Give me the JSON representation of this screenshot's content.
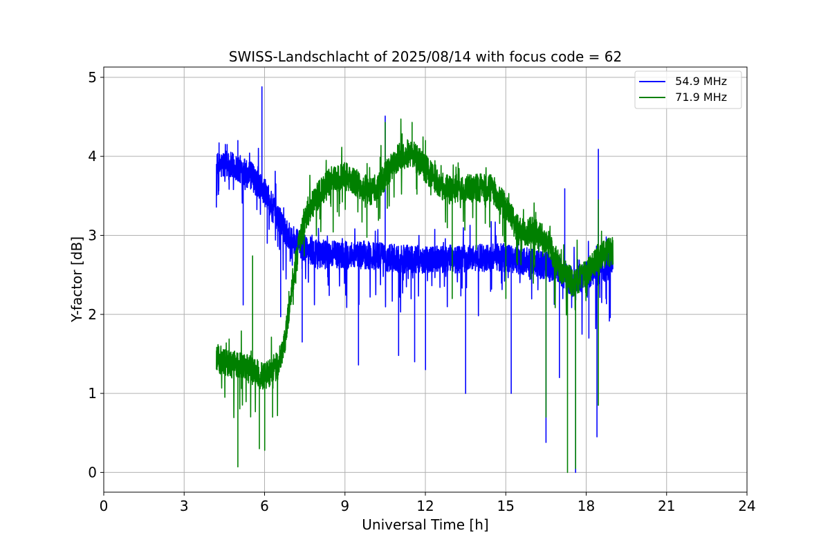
{
  "chart_data": {
    "type": "line",
    "title": "SWISS-Landschlacht of 2025/08/14 with focus code = 62",
    "xlabel": "Universal Time [h]",
    "ylabel": "Y-factor [dB]",
    "xlim": [
      0,
      24
    ],
    "ylim": [
      -0.25,
      5.13
    ],
    "xticks": [
      0,
      3,
      6,
      9,
      12,
      15,
      18,
      21,
      24
    ],
    "xtick_labels": [
      "0",
      "3",
      "6",
      "9",
      "12",
      "15",
      "18",
      "21",
      "24"
    ],
    "yticks": [
      0,
      1,
      2,
      3,
      4,
      5
    ],
    "ytick_labels": [
      "0",
      "1",
      "2",
      "3",
      "4",
      "5"
    ],
    "grid": true,
    "legend_position": "top-right",
    "series": [
      {
        "name": "  54.9 MHz",
        "color": "#0000ff",
        "x_range": [
          4.2,
          19.0
        ],
        "base": [
          [
            4.2,
            3.85
          ],
          [
            4.5,
            3.9
          ],
          [
            5.0,
            3.85
          ],
          [
            5.5,
            3.75
          ],
          [
            6.0,
            3.55
          ],
          [
            6.3,
            3.35
          ],
          [
            6.7,
            3.1
          ],
          [
            7.0,
            2.95
          ],
          [
            7.5,
            2.85
          ],
          [
            8.0,
            2.75
          ],
          [
            9.0,
            2.75
          ],
          [
            10.0,
            2.75
          ],
          [
            11.0,
            2.7
          ],
          [
            12.0,
            2.7
          ],
          [
            13.0,
            2.7
          ],
          [
            14.0,
            2.72
          ],
          [
            15.0,
            2.72
          ],
          [
            16.0,
            2.65
          ],
          [
            17.0,
            2.55
          ],
          [
            17.5,
            2.4
          ],
          [
            18.0,
            2.5
          ],
          [
            18.5,
            2.55
          ],
          [
            19.0,
            2.65
          ]
        ],
        "spikes": [
          [
            4.3,
            4.17
          ],
          [
            4.6,
            4.15
          ],
          [
            5.0,
            4.2
          ],
          [
            5.2,
            2.12
          ],
          [
            5.9,
            4.88
          ],
          [
            6.1,
            2.9
          ],
          [
            6.6,
            1.97
          ],
          [
            7.4,
            1.65
          ],
          [
            9.5,
            1.36
          ],
          [
            10.5,
            4.51
          ],
          [
            11.0,
            1.48
          ],
          [
            11.6,
            1.4
          ],
          [
            12.0,
            1.3
          ],
          [
            13.5,
            1.0
          ],
          [
            15.2,
            1.0
          ],
          [
            16.5,
            0.38
          ],
          [
            17.0,
            1.2
          ],
          [
            17.6,
            0.0
          ],
          [
            18.1,
            1.7
          ],
          [
            18.4,
            0.45
          ],
          [
            18.45,
            4.09
          ],
          [
            17.2,
            3.59
          ]
        ]
      },
      {
        "name": "  71.9 MHz",
        "color": "#008000",
        "x_range": [
          4.2,
          19.0
        ],
        "base": [
          [
            4.2,
            1.45
          ],
          [
            4.5,
            1.4
          ],
          [
            5.0,
            1.35
          ],
          [
            5.5,
            1.3
          ],
          [
            6.0,
            1.2
          ],
          [
            6.5,
            1.35
          ],
          [
            6.8,
            1.75
          ],
          [
            7.0,
            2.3
          ],
          [
            7.3,
            2.9
          ],
          [
            7.6,
            3.3
          ],
          [
            8.0,
            3.5
          ],
          [
            8.5,
            3.7
          ],
          [
            9.0,
            3.75
          ],
          [
            9.5,
            3.65
          ],
          [
            10.0,
            3.55
          ],
          [
            10.5,
            3.75
          ],
          [
            11.0,
            4.0
          ],
          [
            11.5,
            4.05
          ],
          [
            12.0,
            3.85
          ],
          [
            12.5,
            3.65
          ],
          [
            13.0,
            3.55
          ],
          [
            13.5,
            3.6
          ],
          [
            14.0,
            3.6
          ],
          [
            14.5,
            3.6
          ],
          [
            15.0,
            3.35
          ],
          [
            15.5,
            3.05
          ],
          [
            16.0,
            3.05
          ],
          [
            16.5,
            2.95
          ],
          [
            17.0,
            2.6
          ],
          [
            17.5,
            2.4
          ],
          [
            18.0,
            2.5
          ],
          [
            18.5,
            2.75
          ],
          [
            19.0,
            2.8
          ]
        ],
        "spikes": [
          [
            5.0,
            0.07
          ],
          [
            5.55,
            2.74
          ],
          [
            5.8,
            0.3
          ],
          [
            6.0,
            0.28
          ],
          [
            6.3,
            0.7
          ],
          [
            10.5,
            4.43
          ],
          [
            11.5,
            4.43
          ],
          [
            12.0,
            4.2
          ],
          [
            13.0,
            2.2
          ],
          [
            16.5,
            0.7
          ],
          [
            17.3,
            0.0
          ],
          [
            17.6,
            0.05
          ],
          [
            18.45,
            0.85
          ],
          [
            18.45,
            3.45
          ],
          [
            15.0,
            2.2
          ]
        ]
      }
    ]
  }
}
